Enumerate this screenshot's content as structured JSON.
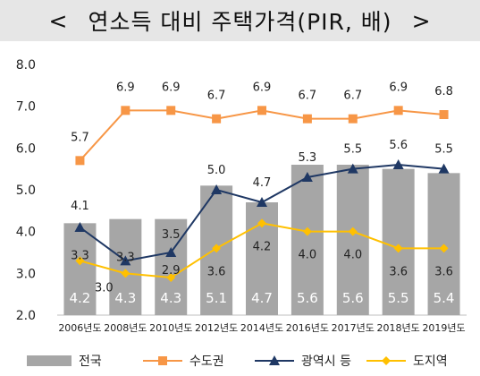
{
  "header": {
    "left_arrow": "<",
    "title": "연소득 대비 주택가격(PIR, 배)",
    "right_arrow": ">"
  },
  "chart_data": {
    "type": "bar",
    "title": "연소득 대비 주택가격(PIR, 배)",
    "categories": [
      "2006년도",
      "2008년도",
      "2010년도",
      "2012년도",
      "2014년도",
      "2016년도",
      "2017년도",
      "2018년도",
      "2019년도"
    ],
    "ylim": [
      2.0,
      8.0
    ],
    "yticks": [
      "2.0",
      "3.0",
      "4.0",
      "5.0",
      "6.0",
      "7.0",
      "8.0"
    ],
    "grid": false,
    "legend_position": "bottom",
    "series": [
      {
        "name": "전국",
        "type": "bar",
        "color": "#a6a6a6",
        "values": [
          4.2,
          4.3,
          4.3,
          5.1,
          4.7,
          5.6,
          5.6,
          5.5,
          5.4
        ],
        "labels": [
          "4.2",
          "4.3",
          "4.3",
          "5.1",
          "4.7",
          "5.6",
          "5.6",
          "5.5",
          "5.4"
        ]
      },
      {
        "name": "수도권",
        "type": "line",
        "color": "#f79646",
        "marker": "square",
        "values": [
          5.7,
          6.9,
          6.9,
          6.7,
          6.9,
          6.7,
          6.7,
          6.9,
          6.8
        ],
        "labels": [
          "5.7",
          "6.9",
          "6.9",
          "6.7",
          "6.9",
          "6.7",
          "6.7",
          "6.9",
          "6.8"
        ]
      },
      {
        "name": "광역시 등",
        "type": "line",
        "color": "#1f3864",
        "marker": "triangle",
        "values": [
          4.1,
          3.3,
          3.5,
          5.0,
          4.7,
          5.3,
          5.5,
          5.6,
          5.5
        ],
        "labels": [
          "4.1",
          "3.3",
          "3.5",
          "5.0",
          "4.7",
          "5.3",
          "5.5",
          "5.6",
          "5.5"
        ]
      },
      {
        "name": "도지역",
        "type": "line",
        "color": "#ffc000",
        "marker": "diamond",
        "values": [
          3.3,
          3.0,
          2.9,
          3.6,
          4.2,
          4.0,
          4.0,
          3.6,
          3.6
        ],
        "labels": [
          "3.3",
          "3.0",
          "2.9",
          "3.6",
          "4.2",
          "4.0",
          "4.0",
          "3.6",
          "3.6"
        ]
      }
    ]
  }
}
